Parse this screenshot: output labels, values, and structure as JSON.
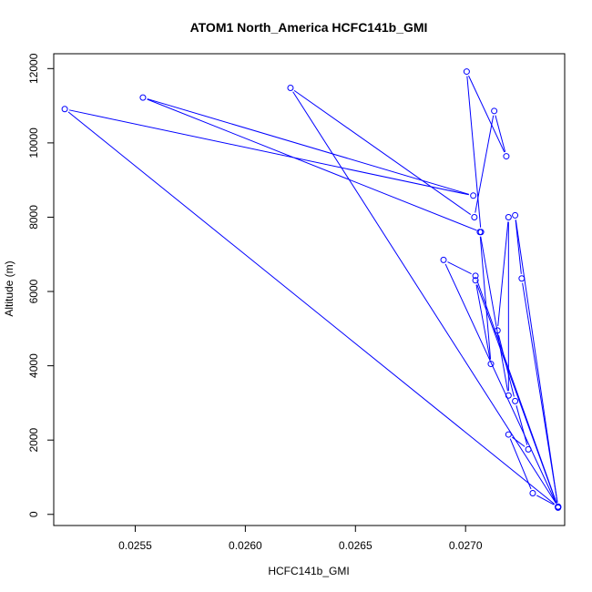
{
  "chart_data": {
    "type": "line",
    "title": "ATOM1 North_America HCFC141b_GMI",
    "xlabel": "HCFC141b_GMI",
    "ylabel": "Altitude (m)",
    "xlim": [
      0.02513,
      0.02745
    ],
    "ylim": [
      -300,
      12400
    ],
    "xticks": [
      0.0255,
      0.026,
      0.0265,
      0.027
    ],
    "xtick_labels": [
      "0.0255",
      "0.0260",
      "0.0265",
      "0.0270"
    ],
    "yticks": [
      0,
      2000,
      4000,
      6000,
      8000,
      10000,
      12000
    ],
    "ytick_labels": [
      "0",
      "2000",
      "4000",
      "6000",
      "8000",
      "10000",
      "12000"
    ],
    "grid": false,
    "series": [
      {
        "color": "#0000ff",
        "marker": "open-circle",
        "points": [
          {
            "x": 0.02742,
            "y": 200
          },
          {
            "x": 0.027305,
            "y": 570
          },
          {
            "x": 0.027195,
            "y": 2150
          },
          {
            "x": 0.027285,
            "y": 1750
          },
          {
            "x": 0.027225,
            "y": 3050
          },
          {
            "x": 0.027145,
            "y": 4950
          },
          {
            "x": 0.027195,
            "y": 8000
          },
          {
            "x": 0.027195,
            "y": 3200
          },
          {
            "x": 0.027065,
            "y": 7600
          },
          {
            "x": 0.027115,
            "y": 4050
          },
          {
            "x": 0.027045,
            "y": 6300
          },
          {
            "x": 0.02742,
            "y": 180
          },
          {
            "x": 0.0269,
            "y": 6850
          },
          {
            "x": 0.027045,
            "y": 6420
          },
          {
            "x": 0.02742,
            "y": 190
          },
          {
            "x": 0.027225,
            "y": 8050
          },
          {
            "x": 0.027255,
            "y": 6350
          },
          {
            "x": 0.02742,
            "y": 210
          },
          {
            "x": 0.026205,
            "y": 11480
          },
          {
            "x": 0.02704,
            "y": 8000
          },
          {
            "x": 0.02713,
            "y": 10860
          },
          {
            "x": 0.027185,
            "y": 9640
          },
          {
            "x": 0.027005,
            "y": 11920
          },
          {
            "x": 0.02707,
            "y": 7600
          },
          {
            "x": 0.025535,
            "y": 11220
          },
          {
            "x": 0.027035,
            "y": 8580
          },
          {
            "x": 0.02518,
            "y": 10910
          },
          {
            "x": 0.02742,
            "y": 200
          }
        ]
      }
    ]
  }
}
